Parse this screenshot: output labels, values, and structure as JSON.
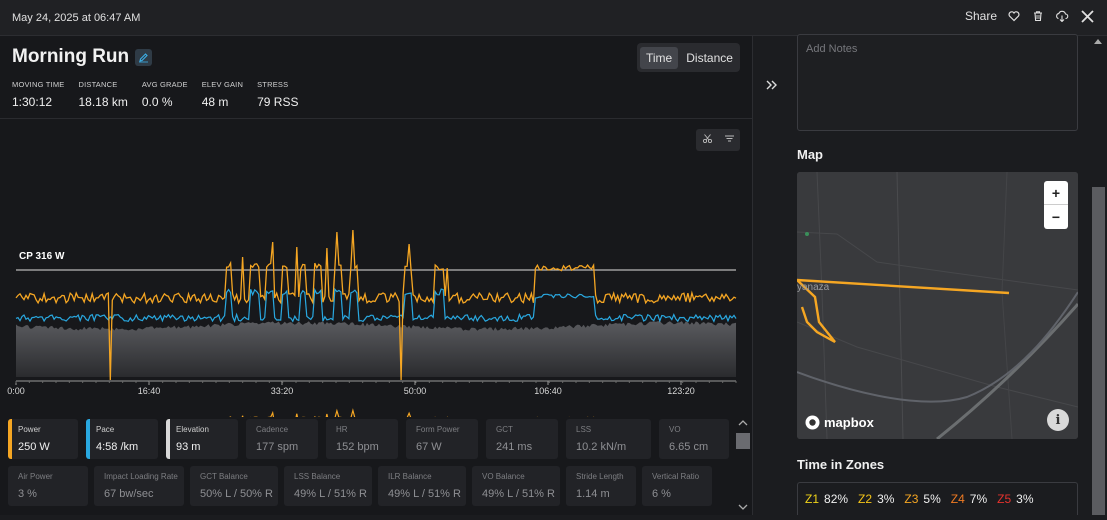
{
  "topbar": {
    "date": "May 24, 2025 at 06:47 AM",
    "share_label": "Share",
    "icons": [
      "heart-icon",
      "trash-icon",
      "cloud-download-icon",
      "close-icon"
    ]
  },
  "activity": {
    "title": "Morning Run",
    "view_toggle": {
      "time_label": "Time",
      "distance_label": "Distance",
      "active": "Time"
    },
    "stats": [
      {
        "label": "MOVING TIME",
        "value": "1:30:12"
      },
      {
        "label": "DISTANCE",
        "value": "18.18 km"
      },
      {
        "label": "AVG GRADE",
        "value": "0.0 %"
      },
      {
        "label": "ELEV GAIN",
        "value": "48 m"
      },
      {
        "label": "STRESS",
        "value": "79 RSS"
      }
    ]
  },
  "chart_data": {
    "type": "line",
    "x_ticks": [
      "0:00",
      "16:40",
      "33:20",
      "50:00",
      "106:40",
      "123:20"
    ],
    "cp_label": "CP 316 W",
    "cp_value": 316,
    "series": [
      {
        "name": "Power",
        "color": "#f5a623"
      },
      {
        "name": "Pace",
        "color": "#29a8e0"
      },
      {
        "name": "Elevation",
        "color": "#9b9b9b"
      }
    ]
  },
  "metrics": {
    "row1": [
      {
        "label": "Power",
        "value": "250 W",
        "color": "#f5a623",
        "active": true
      },
      {
        "label": "Pace",
        "value": "4:58 /km",
        "color": "#29a8e0",
        "active": true
      },
      {
        "label": "Elevation",
        "value": "93 m",
        "color": "#d8d8d8",
        "active": true
      },
      {
        "label": "Cadence",
        "value": "177 spm",
        "active": false
      },
      {
        "label": "HR",
        "value": "152 bpm",
        "active": false
      },
      {
        "label": "Form Power",
        "value": "67 W",
        "active": false
      },
      {
        "label": "GCT",
        "value": "241 ms",
        "active": false
      },
      {
        "label": "LSS",
        "value": "10.2 kN/m",
        "active": false
      },
      {
        "label": "VO",
        "value": "6.65 cm",
        "active": false
      }
    ],
    "row2": [
      {
        "label": "Air Power",
        "value": "3 %"
      },
      {
        "label": "Impact Loading Rate",
        "value": "67 bw/sec"
      },
      {
        "label": "GCT Balance",
        "value": "50% L / 50% R"
      },
      {
        "label": "LSS Balance",
        "value": "49% L / 51% R"
      },
      {
        "label": "ILR Balance",
        "value": "49% L / 51% R"
      },
      {
        "label": "VO Balance",
        "value": "49% L / 51% R"
      },
      {
        "label": "Stride Length",
        "value": "1.14 m"
      },
      {
        "label": "Vertical Ratio",
        "value": "6 %"
      }
    ]
  },
  "sidebar": {
    "notes_placeholder": "Add Notes",
    "map_title": "Map",
    "map_place_label": "yanaza",
    "mapbox_label": "mapbox",
    "zoom_in": "+",
    "zoom_out": "−",
    "zones_title": "Time in Zones",
    "zones": [
      {
        "name": "Z1",
        "value": "82%",
        "color": "#f0d31a"
      },
      {
        "name": "Z2",
        "value": "3%",
        "color": "#f5c518"
      },
      {
        "name": "Z3",
        "value": "5%",
        "color": "#f5a623"
      },
      {
        "name": "Z4",
        "value": "7%",
        "color": "#f07a22"
      },
      {
        "name": "Z5",
        "value": "3%",
        "color": "#e5322d"
      }
    ]
  }
}
